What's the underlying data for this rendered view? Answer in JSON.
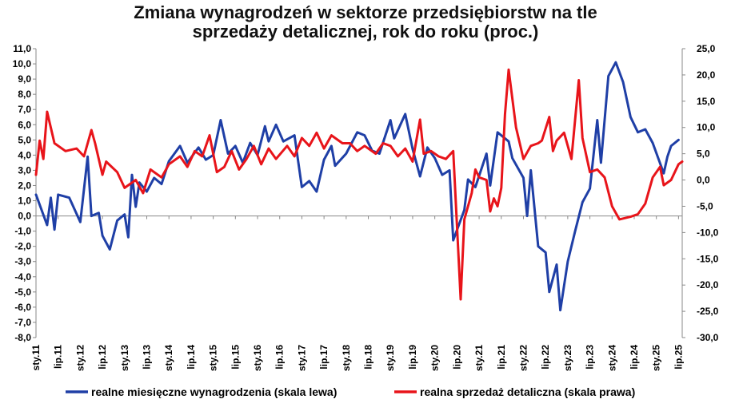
{
  "chart_data": {
    "type": "line",
    "title_lines": [
      "Zmiana wynagrodzeń w sektorze przedsiębiorstw na tle",
      "sprzedaży detalicznej, rok do roku (proc.)"
    ],
    "x_ticks": [
      "sty.11",
      "lip.11",
      "sty.12",
      "lip.12",
      "sty.13",
      "lip.13",
      "sty.14",
      "lip.14",
      "sty.15",
      "lip.15",
      "sty.16",
      "lip.16",
      "sty.17",
      "lip.17",
      "sty.18",
      "lip.18",
      "sty.19",
      "lip.19",
      "sty.20",
      "lip.20",
      "sty.21",
      "lip.21",
      "sty.22",
      "lip.22",
      "sty.23",
      "lip.23",
      "sty.24",
      "lip.24",
      "sty.25",
      "lip.25"
    ],
    "y_left": {
      "min": -8,
      "max": 11,
      "step": 1,
      "tick_labels": [
        "11,0",
        "10,0",
        "9,0",
        "8,0",
        "7,0",
        "6,0",
        "5,0",
        "4,0",
        "3,0",
        "2,0",
        "1,0",
        "0,0",
        "-1,0",
        "-2,0",
        "-3,0",
        "-4,0",
        "-5,0",
        "-6,0",
        "-7,0",
        "-8,0"
      ]
    },
    "y_right": {
      "min": -30,
      "max": 25,
      "step": 5,
      "tick_labels": [
        "25,0",
        "20,0",
        "15,0",
        "10,0",
        "5,0",
        "0,0",
        "-5,0",
        "-10,0",
        "-15,0",
        "-20,0",
        "-25,0",
        "-30,0"
      ]
    },
    "grid": false,
    "legend_position": "bottom",
    "series": [
      {
        "name": "realne miesięczne wynagrodzenia (skala lewa)",
        "axis": "left",
        "color": "#1f3fa6",
        "points": [
          [
            "2011-01",
            1.4
          ],
          [
            "2011-04",
            -0.6
          ],
          [
            "2011-05",
            1.2
          ],
          [
            "2011-06",
            -0.9
          ],
          [
            "2011-07",
            1.4
          ],
          [
            "2011-10",
            1.2
          ],
          [
            "2012-01",
            -0.4
          ],
          [
            "2012-03",
            3.9
          ],
          [
            "2012-04",
            0.0
          ],
          [
            "2012-06",
            0.2
          ],
          [
            "2012-07",
            -1.3
          ],
          [
            "2012-09",
            -2.2
          ],
          [
            "2012-11",
            -0.3
          ],
          [
            "2013-01",
            0.1
          ],
          [
            "2013-02",
            -1.4
          ],
          [
            "2013-03",
            2.7
          ],
          [
            "2013-04",
            0.6
          ],
          [
            "2013-05",
            2.2
          ],
          [
            "2013-07",
            1.6
          ],
          [
            "2013-09",
            2.5
          ],
          [
            "2013-11",
            2.1
          ],
          [
            "2014-01",
            3.6
          ],
          [
            "2014-04",
            4.6
          ],
          [
            "2014-06",
            3.5
          ],
          [
            "2014-09",
            4.5
          ],
          [
            "2014-11",
            3.7
          ],
          [
            "2015-01",
            4.0
          ],
          [
            "2015-03",
            6.3
          ],
          [
            "2015-05",
            4.1
          ],
          [
            "2015-07",
            4.6
          ],
          [
            "2015-09",
            3.5
          ],
          [
            "2015-11",
            4.8
          ],
          [
            "2016-01",
            4.0
          ],
          [
            "2016-03",
            5.9
          ],
          [
            "2016-04",
            4.9
          ],
          [
            "2016-06",
            6.0
          ],
          [
            "2016-08",
            4.9
          ],
          [
            "2016-11",
            5.3
          ],
          [
            "2017-01",
            1.9
          ],
          [
            "2017-03",
            2.3
          ],
          [
            "2017-05",
            1.6
          ],
          [
            "2017-07",
            3.7
          ],
          [
            "2017-09",
            4.6
          ],
          [
            "2017-10",
            3.3
          ],
          [
            "2018-01",
            4.1
          ],
          [
            "2018-04",
            5.5
          ],
          [
            "2018-06",
            5.3
          ],
          [
            "2018-08",
            4.3
          ],
          [
            "2018-10",
            4.1
          ],
          [
            "2019-01",
            6.3
          ],
          [
            "2019-02",
            5.1
          ],
          [
            "2019-05",
            6.7
          ],
          [
            "2019-07",
            4.4
          ],
          [
            "2019-09",
            2.6
          ],
          [
            "2019-11",
            4.5
          ],
          [
            "2020-01",
            3.8
          ],
          [
            "2020-03",
            2.7
          ],
          [
            "2020-05",
            3.0
          ],
          [
            "2020-06",
            -1.6
          ],
          [
            "2020-09",
            0.4
          ],
          [
            "2020-10",
            2.4
          ],
          [
            "2020-12",
            1.9
          ],
          [
            "2021-03",
            4.1
          ],
          [
            "2021-04",
            2.0
          ],
          [
            "2021-06",
            5.5
          ],
          [
            "2021-09",
            4.9
          ],
          [
            "2021-10",
            3.8
          ],
          [
            "2022-01",
            2.5
          ],
          [
            "2022-02",
            0.0
          ],
          [
            "2022-03",
            3.0
          ],
          [
            "2022-05",
            -2.0
          ],
          [
            "2022-07",
            -2.4
          ],
          [
            "2022-08",
            -5.0
          ],
          [
            "2022-10",
            -3.2
          ],
          [
            "2022-11",
            -6.2
          ],
          [
            "2023-01",
            -3.0
          ],
          [
            "2023-03",
            -1.0
          ],
          [
            "2023-05",
            0.9
          ],
          [
            "2023-07",
            1.8
          ],
          [
            "2023-09",
            6.3
          ],
          [
            "2023-10",
            3.5
          ],
          [
            "2023-12",
            9.2
          ],
          [
            "2024-02",
            10.1
          ],
          [
            "2024-04",
            8.8
          ],
          [
            "2024-06",
            6.5
          ],
          [
            "2024-08",
            5.5
          ],
          [
            "2024-10",
            5.7
          ],
          [
            "2024-12",
            4.8
          ],
          [
            "2025-03",
            2.8
          ],
          [
            "2025-04",
            3.9
          ],
          [
            "2025-05",
            4.6
          ],
          [
            "2025-07",
            5.0
          ]
        ]
      },
      {
        "name": "realna sprzedaż detaliczna (skala prawa)",
        "axis": "right",
        "color": "#e8141a",
        "points": [
          [
            "2011-01",
            1.0
          ],
          [
            "2011-02",
            7.5
          ],
          [
            "2011-03",
            4.0
          ],
          [
            "2011-04",
            13.0
          ],
          [
            "2011-06",
            7.0
          ],
          [
            "2011-09",
            5.5
          ],
          [
            "2011-12",
            6.0
          ],
          [
            "2012-02",
            4.5
          ],
          [
            "2012-04",
            9.5
          ],
          [
            "2012-05",
            7.0
          ],
          [
            "2012-07",
            1.0
          ],
          [
            "2012-08",
            3.5
          ],
          [
            "2012-11",
            1.5
          ],
          [
            "2013-01",
            -1.5
          ],
          [
            "2013-04",
            0.0
          ],
          [
            "2013-06",
            -2.5
          ],
          [
            "2013-08",
            2.0
          ],
          [
            "2013-11",
            0.5
          ],
          [
            "2014-01",
            3.0
          ],
          [
            "2014-04",
            4.5
          ],
          [
            "2014-06",
            2.5
          ],
          [
            "2014-08",
            5.5
          ],
          [
            "2014-10",
            4.5
          ],
          [
            "2014-12",
            8.5
          ],
          [
            "2015-02",
            1.5
          ],
          [
            "2015-04",
            2.5
          ],
          [
            "2015-06",
            5.5
          ],
          [
            "2015-08",
            2.0
          ],
          [
            "2015-10",
            4.0
          ],
          [
            "2015-12",
            6.5
          ],
          [
            "2016-02",
            3.0
          ],
          [
            "2016-04",
            6.0
          ],
          [
            "2016-06",
            4.0
          ],
          [
            "2016-09",
            6.5
          ],
          [
            "2016-11",
            4.5
          ],
          [
            "2017-01",
            8.0
          ],
          [
            "2017-03",
            6.5
          ],
          [
            "2017-05",
            9.0
          ],
          [
            "2017-07",
            6.0
          ],
          [
            "2017-09",
            8.5
          ],
          [
            "2017-12",
            7.0
          ],
          [
            "2018-02",
            7.0
          ],
          [
            "2018-04",
            5.5
          ],
          [
            "2018-06",
            6.5
          ],
          [
            "2018-09",
            5.0
          ],
          [
            "2018-11",
            7.0
          ],
          [
            "2019-01",
            6.5
          ],
          [
            "2019-03",
            4.5
          ],
          [
            "2019-05",
            6.0
          ],
          [
            "2019-07",
            3.5
          ],
          [
            "2019-09",
            11.5
          ],
          [
            "2019-10",
            5.0
          ],
          [
            "2019-12",
            5.5
          ],
          [
            "2020-02",
            4.5
          ],
          [
            "2020-04",
            4.0
          ],
          [
            "2020-06",
            5.5
          ],
          [
            "2020-08",
            -22.7
          ],
          [
            "2020-09",
            -7.5
          ],
          [
            "2020-11",
            -2.5
          ],
          [
            "2020-12",
            2.0
          ],
          [
            "2021-01",
            0.5
          ],
          [
            "2021-03",
            0.0
          ],
          [
            "2021-04",
            -6.0
          ],
          [
            "2021-05",
            -3.5
          ],
          [
            "2021-06",
            -5.0
          ],
          [
            "2021-07",
            -1.5
          ],
          [
            "2021-08",
            12.5
          ],
          [
            "2021-09",
            21.0
          ],
          [
            "2021-11",
            10.0
          ],
          [
            "2022-01",
            4.0
          ],
          [
            "2022-03",
            6.5
          ],
          [
            "2022-05",
            7.0
          ],
          [
            "2022-06",
            7.5
          ],
          [
            "2022-08",
            12.0
          ],
          [
            "2022-09",
            5.5
          ],
          [
            "2022-10",
            7.5
          ],
          [
            "2022-12",
            9.0
          ],
          [
            "2023-02",
            4.0
          ],
          [
            "2023-04",
            19.0
          ],
          [
            "2023-05",
            8.0
          ],
          [
            "2023-07",
            1.5
          ],
          [
            "2023-09",
            2.0
          ],
          [
            "2023-11",
            0.5
          ],
          [
            "2024-01",
            -5.0
          ],
          [
            "2024-03",
            -7.5
          ],
          [
            "2024-06",
            -7.0
          ],
          [
            "2024-08",
            -6.5
          ],
          [
            "2024-10",
            -4.5
          ],
          [
            "2024-12",
            0.5
          ],
          [
            "2025-02",
            2.5
          ],
          [
            "2025-03",
            -1.0
          ],
          [
            "2025-05",
            0.0
          ],
          [
            "2025-07",
            3.0
          ],
          [
            "2025-08",
            3.5
          ]
        ]
      }
    ]
  }
}
